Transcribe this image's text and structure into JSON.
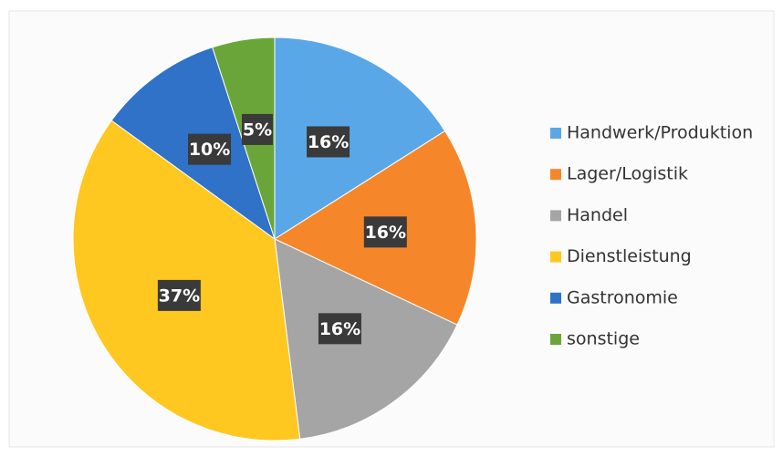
{
  "chart_data": {
    "type": "pie",
    "categories": [
      "Handwerk/Produktion",
      "Lager/Logistik",
      "Handel",
      "Dienstleistung",
      "Gastronomie",
      "sonstige"
    ],
    "values": [
      16,
      16,
      16,
      37,
      10,
      5
    ],
    "value_labels": [
      "16%",
      "16%",
      "16%",
      "37%",
      "10%",
      "5%"
    ],
    "colors": [
      "#5aa7e8",
      "#f5872a",
      "#a5a5a5",
      "#ffc820",
      "#2f72c8",
      "#6aa53a"
    ],
    "legend": "right"
  }
}
